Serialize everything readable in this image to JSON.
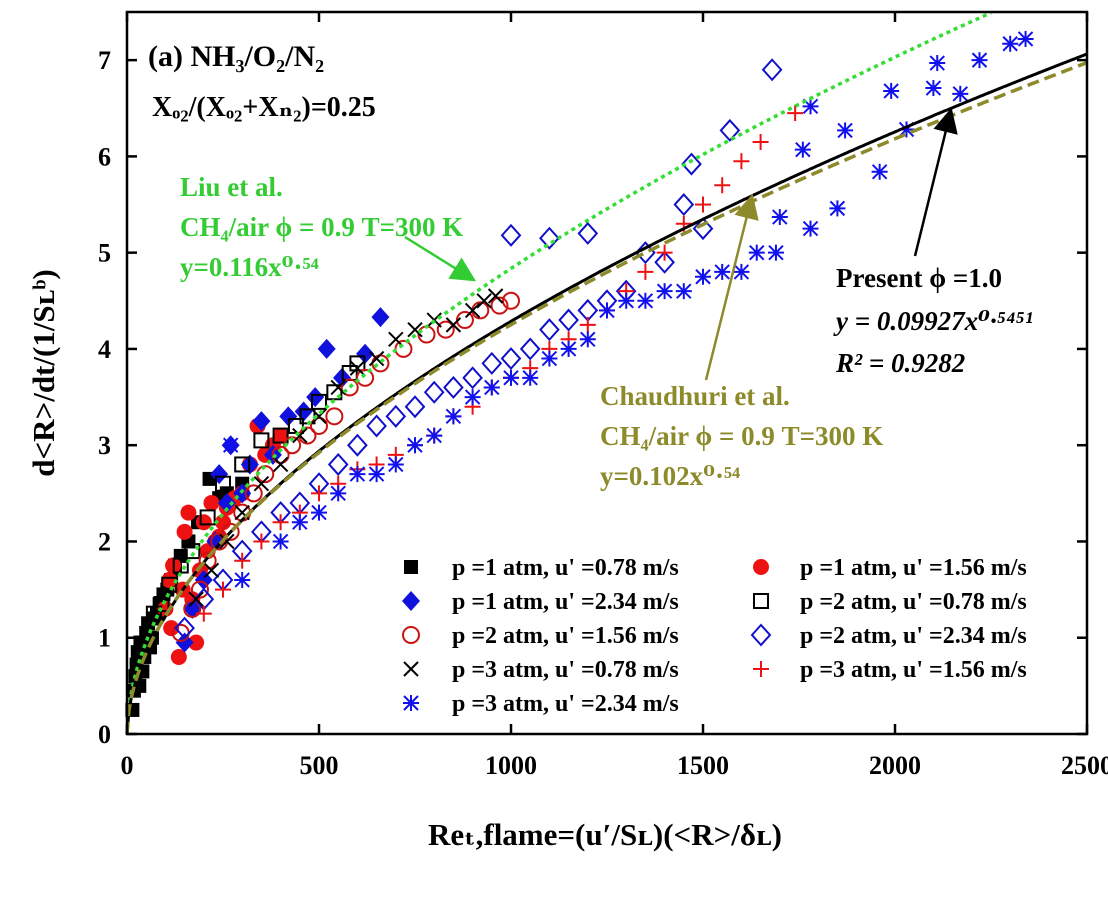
{
  "chart_data": {
    "type": "scatter",
    "panel_label": "(a) NH₃/O₂/N₂",
    "subtitle": "Xₒ₂/(Xₒ₂+Xₙ₂)=0.25",
    "xlabel": "Reₜ,flame=(u′/Sʟ)(<R>/δʟ)",
    "ylabel": "d<R>/dt/(1/Sʟᵇ)",
    "xlim": [
      0,
      2500
    ],
    "ylim": [
      0,
      7.5
    ],
    "xticks": [
      "0",
      "500",
      "1000",
      "1500",
      "2000",
      "2500"
    ],
    "yticks": [
      "0",
      "1",
      "2",
      "3",
      "4",
      "5",
      "6",
      "7"
    ],
    "legend_placement": "bottom-right",
    "fits": [
      {
        "key": "liu",
        "color": "#33dd33",
        "dash": "dotted",
        "a": 0.116,
        "b": 0.54,
        "lines": [
          "Liu et al.",
          "CH₄/air ϕ = 0.9 T=300 K",
          "y=0.116x⁰·⁵⁴"
        ]
      },
      {
        "key": "present",
        "color": "#000000",
        "dash": "solid",
        "a": 0.09927,
        "b": 0.5451,
        "lines": [
          "Present ϕ =1.0",
          "y = 0.09927x⁰·⁵⁴⁵¹",
          "R² = 0.9282"
        ]
      },
      {
        "key": "chaudhuri",
        "color": "#8c8a2a",
        "dash": "dashed",
        "a": 0.102,
        "b": 0.54,
        "lines": [
          "Chaudhuri et al.",
          "CH₄/air ϕ = 0.9 T=300 K",
          "y=0.102x⁰·⁵⁴"
        ]
      }
    ],
    "series": [
      {
        "name": "p =1 atm, u' =0.78 m/s",
        "marker": "square-filled",
        "color": "#000000",
        "points": [
          [
            14,
            0.25
          ],
          [
            18,
            0.45
          ],
          [
            22,
            0.6
          ],
          [
            25,
            0.72
          ],
          [
            28,
            0.85
          ],
          [
            32,
            0.5
          ],
          [
            35,
            0.95
          ],
          [
            40,
            0.65
          ],
          [
            45,
            0.8
          ],
          [
            50,
            1.05
          ],
          [
            55,
            1.15
          ],
          [
            60,
            0.9
          ],
          [
            65,
            1.0
          ],
          [
            70,
            1.2
          ],
          [
            78,
            1.25
          ],
          [
            85,
            1.35
          ],
          [
            95,
            1.45
          ],
          [
            105,
            1.5
          ],
          [
            115,
            1.6
          ],
          [
            125,
            1.75
          ],
          [
            140,
            1.85
          ],
          [
            160,
            2.0
          ],
          [
            185,
            2.2
          ],
          [
            215,
            2.65
          ],
          [
            240,
            2.45
          ],
          [
            260,
            2.5
          ],
          [
            300,
            2.6
          ]
        ]
      },
      {
        "name": "p =1 atm, u' =1.56 m/s",
        "marker": "circle-filled",
        "color": "#ee1111",
        "points": [
          [
            100,
            1.3
          ],
          [
            110,
            1.6
          ],
          [
            115,
            1.1
          ],
          [
            120,
            1.75
          ],
          [
            135,
            0.8
          ],
          [
            145,
            1.5
          ],
          [
            150,
            2.1
          ],
          [
            160,
            2.3
          ],
          [
            170,
            1.4
          ],
          [
            180,
            0.95
          ],
          [
            190,
            1.7
          ],
          [
            200,
            2.2
          ],
          [
            210,
            1.9
          ],
          [
            220,
            2.4
          ],
          [
            230,
            2.0
          ],
          [
            240,
            2.05
          ],
          [
            250,
            2.2
          ],
          [
            260,
            2.35
          ],
          [
            280,
            2.45
          ],
          [
            300,
            2.5
          ],
          [
            320,
            2.8
          ],
          [
            340,
            3.2
          ],
          [
            360,
            2.9
          ],
          [
            380,
            3.0
          ],
          [
            400,
            3.1
          ]
        ]
      },
      {
        "name": "p =1 atm, u' =2.34 m/s",
        "marker": "diamond-filled",
        "color": "#1111dd",
        "points": [
          [
            150,
            0.95
          ],
          [
            170,
            1.3
          ],
          [
            200,
            1.6
          ],
          [
            230,
            2.0
          ],
          [
            240,
            2.7
          ],
          [
            260,
            2.4
          ],
          [
            270,
            3.0
          ],
          [
            300,
            2.5
          ],
          [
            320,
            2.8
          ],
          [
            350,
            3.25
          ],
          [
            380,
            2.9
          ],
          [
            420,
            3.3
          ],
          [
            460,
            3.35
          ],
          [
            490,
            3.5
          ],
          [
            520,
            4.0
          ],
          [
            560,
            3.7
          ],
          [
            620,
            3.95
          ],
          [
            660,
            4.33
          ]
        ]
      },
      {
        "name": "p =2 atm, u' =0.78 m/s",
        "marker": "square-open",
        "color": "#000000",
        "points": [
          [
            70,
            1.25
          ],
          [
            90,
            1.35
          ],
          [
            110,
            1.55
          ],
          [
            140,
            1.75
          ],
          [
            170,
            1.9
          ],
          [
            210,
            2.25
          ],
          [
            250,
            2.6
          ],
          [
            300,
            2.8
          ],
          [
            350,
            3.05
          ],
          [
            400,
            3.1
          ],
          [
            440,
            3.2
          ],
          [
            470,
            3.3
          ],
          [
            500,
            3.45
          ],
          [
            540,
            3.55
          ],
          [
            580,
            3.75
          ],
          [
            600,
            3.85
          ]
        ]
      },
      {
        "name": "p =2 atm, u' =1.56 m/s",
        "marker": "circle-open",
        "color": "#cc1111",
        "points": [
          [
            140,
            1.05
          ],
          [
            170,
            1.3
          ],
          [
            190,
            1.5
          ],
          [
            210,
            1.8
          ],
          [
            240,
            2.0
          ],
          [
            270,
            2.1
          ],
          [
            300,
            2.3
          ],
          [
            330,
            2.5
          ],
          [
            360,
            2.7
          ],
          [
            400,
            2.9
          ],
          [
            430,
            3.0
          ],
          [
            470,
            3.1
          ],
          [
            500,
            3.2
          ],
          [
            540,
            3.3
          ],
          [
            580,
            3.6
          ],
          [
            620,
            3.7
          ],
          [
            660,
            3.85
          ],
          [
            720,
            4.0
          ],
          [
            780,
            4.15
          ],
          [
            830,
            4.2
          ],
          [
            880,
            4.3
          ],
          [
            920,
            4.4
          ],
          [
            970,
            4.45
          ],
          [
            1000,
            4.5
          ]
        ]
      },
      {
        "name": "p =2 atm, u' =2.34 m/s",
        "marker": "diamond-open",
        "color": "#1111cc",
        "points": [
          [
            150,
            1.1
          ],
          [
            200,
            1.4
          ],
          [
            250,
            1.6
          ],
          [
            300,
            1.9
          ],
          [
            350,
            2.1
          ],
          [
            400,
            2.3
          ],
          [
            450,
            2.4
          ],
          [
            500,
            2.6
          ],
          [
            550,
            2.8
          ],
          [
            600,
            3.0
          ],
          [
            650,
            3.2
          ],
          [
            700,
            3.3
          ],
          [
            750,
            3.4
          ],
          [
            800,
            3.55
          ],
          [
            850,
            3.6
          ],
          [
            900,
            3.7
          ],
          [
            950,
            3.85
          ],
          [
            1000,
            3.9
          ],
          [
            1000,
            5.18
          ],
          [
            1050,
            4.0
          ],
          [
            1100,
            4.2
          ],
          [
            1100,
            5.15
          ],
          [
            1150,
            4.3
          ],
          [
            1200,
            4.4
          ],
          [
            1200,
            5.2
          ],
          [
            1250,
            4.5
          ],
          [
            1300,
            4.6
          ],
          [
            1350,
            5.0
          ],
          [
            1400,
            4.9
          ],
          [
            1450,
            5.5
          ],
          [
            1470,
            5.92
          ],
          [
            1500,
            5.25
          ],
          [
            1570,
            6.27
          ],
          [
            1680,
            6.9
          ]
        ]
      },
      {
        "name": "p =3 atm, u' =0.78 m/s",
        "marker": "cross",
        "color": "#000000",
        "points": [
          [
            180,
            1.4
          ],
          [
            220,
            1.7
          ],
          [
            260,
            2.0
          ],
          [
            300,
            2.3
          ],
          [
            350,
            2.6
          ],
          [
            400,
            2.8
          ],
          [
            450,
            3.1
          ],
          [
            500,
            3.3
          ],
          [
            550,
            3.6
          ],
          [
            600,
            3.8
          ],
          [
            650,
            3.9
          ],
          [
            700,
            4.1
          ],
          [
            750,
            4.2
          ],
          [
            800,
            4.3
          ],
          [
            850,
            4.25
          ],
          [
            900,
            4.4
          ],
          [
            930,
            4.5
          ],
          [
            960,
            4.55
          ]
        ]
      },
      {
        "name": "p =3 atm, u' =1.56 m/s",
        "marker": "plus",
        "color": "#ee1111",
        "points": [
          [
            200,
            1.25
          ],
          [
            250,
            1.5
          ],
          [
            300,
            1.8
          ],
          [
            350,
            2.0
          ],
          [
            400,
            2.2
          ],
          [
            450,
            2.3
          ],
          [
            500,
            2.5
          ],
          [
            550,
            2.6
          ],
          [
            600,
            2.75
          ],
          [
            650,
            2.8
          ],
          [
            700,
            2.9
          ],
          [
            750,
            3.0
          ],
          [
            800,
            3.1
          ],
          [
            850,
            3.3
          ],
          [
            900,
            3.4
          ],
          [
            950,
            3.6
          ],
          [
            1000,
            3.7
          ],
          [
            1050,
            3.8
          ],
          [
            1100,
            4.0
          ],
          [
            1150,
            4.1
          ],
          [
            1200,
            4.25
          ],
          [
            1250,
            4.4
          ],
          [
            1300,
            4.6
          ],
          [
            1350,
            4.8
          ],
          [
            1400,
            5.0
          ],
          [
            1450,
            5.3
          ],
          [
            1500,
            5.5
          ],
          [
            1550,
            5.7
          ],
          [
            1600,
            5.95
          ],
          [
            1650,
            6.15
          ],
          [
            1740,
            6.45
          ]
        ]
      },
      {
        "name": "p =3 atm, u' =2.34 m/s",
        "marker": "asterisk",
        "color": "#1111ee",
        "points": [
          [
            270,
            3.0
          ],
          [
            300,
            1.6
          ],
          [
            400,
            2.0
          ],
          [
            450,
            2.2
          ],
          [
            500,
            2.3
          ],
          [
            550,
            2.5
          ],
          [
            600,
            2.7
          ],
          [
            650,
            2.7
          ],
          [
            700,
            2.8
          ],
          [
            750,
            3.0
          ],
          [
            800,
            3.1
          ],
          [
            850,
            3.3
          ],
          [
            900,
            3.5
          ],
          [
            950,
            3.6
          ],
          [
            1000,
            3.7
          ],
          [
            1050,
            3.7
          ],
          [
            1100,
            3.9
          ],
          [
            1150,
            4.0
          ],
          [
            1200,
            4.1
          ],
          [
            1250,
            4.4
          ],
          [
            1300,
            4.5
          ],
          [
            1350,
            4.5
          ],
          [
            1400,
            4.6
          ],
          [
            1450,
            4.6
          ],
          [
            1500,
            4.75
          ],
          [
            1550,
            4.8
          ],
          [
            1600,
            4.8
          ],
          [
            1640,
            5.0
          ],
          [
            1690,
            5.0
          ],
          [
            1700,
            5.37
          ],
          [
            1760,
            6.07
          ],
          [
            1780,
            5.25
          ],
          [
            1780,
            6.52
          ],
          [
            1850,
            5.46
          ],
          [
            1870,
            6.27
          ],
          [
            1960,
            5.84
          ],
          [
            1990,
            6.68
          ],
          [
            2030,
            6.28
          ],
          [
            2100,
            6.71
          ],
          [
            2110,
            6.97
          ],
          [
            2170,
            6.65
          ],
          [
            2220,
            7.0
          ],
          [
            2300,
            7.17
          ],
          [
            2340,
            7.22
          ]
        ]
      }
    ]
  }
}
